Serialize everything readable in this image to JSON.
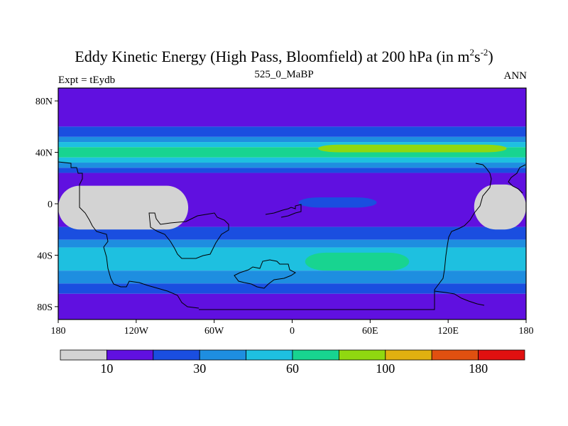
{
  "title_main": "Eddy Kinetic Energy (High Pass, Bloomfield) at 200 hPa (in m",
  "title_sup1": "2",
  "title_mid": "s",
  "title_sup2": "-2",
  "title_end": ")",
  "subtitle": "525_0_MaBP",
  "left_label": "Expt = tEydb",
  "right_label": "ANN",
  "chart_data": {
    "type": "heatmap",
    "title": "Eddy Kinetic Energy (High Pass, Bloomfield) at 200 hPa (in m^2 s^-2)",
    "subtitle": "525_0_MaBP",
    "xlim": [
      -180,
      180
    ],
    "ylim": [
      -90,
      90
    ],
    "x_ticks": [
      -180,
      -120,
      -60,
      0,
      60,
      120,
      180
    ],
    "x_tick_labels": [
      "180",
      "120W",
      "60W",
      "0",
      "60E",
      "120E",
      "180"
    ],
    "y_ticks": [
      80,
      40,
      0,
      -40,
      -80
    ],
    "y_tick_labels": [
      "80N",
      "40N",
      "0",
      "40S",
      "80S"
    ],
    "colorbar": {
      "colors": [
        "#d3d3d3",
        "#6010e0",
        "#1a4ee0",
        "#1e8ee0",
        "#1ec0e0",
        "#18d490",
        "#90d810",
        "#e0b010",
        "#e05010",
        "#e01010"
      ],
      "labels": [
        "10",
        "30",
        "60",
        "100",
        "180"
      ]
    },
    "bands": [
      {
        "level": 1,
        "y": [
          60,
          90
        ]
      },
      {
        "level": 2,
        "y": [
          52,
          60
        ]
      },
      {
        "level": 3,
        "y": [
          48,
          52
        ]
      },
      {
        "level": 4,
        "y": [
          44,
          48
        ]
      },
      {
        "level": 5,
        "y": [
          36,
          44
        ]
      },
      {
        "level": 4,
        "y": [
          32,
          36
        ]
      },
      {
        "level": 3,
        "y": [
          28,
          32
        ]
      },
      {
        "level": 2,
        "y": [
          24,
          28
        ]
      },
      {
        "level": 1,
        "y": [
          -18,
          24
        ]
      },
      {
        "level": 2,
        "y": [
          -28,
          -18
        ]
      },
      {
        "level": 3,
        "y": [
          -34,
          -28
        ]
      },
      {
        "level": 4,
        "y": [
          -52,
          -34
        ]
      },
      {
        "level": 3,
        "y": [
          -62,
          -52
        ]
      },
      {
        "level": 2,
        "y": [
          -70,
          -62
        ]
      },
      {
        "level": 1,
        "y": [
          -90,
          -70
        ]
      }
    ],
    "patches": [
      {
        "level": 6,
        "lon": [
          20,
          165
        ],
        "lat": [
          40,
          46
        ]
      },
      {
        "level": 5,
        "lon": [
          10,
          90
        ],
        "lat": [
          -52,
          -38
        ]
      },
      {
        "level": 2,
        "lon": [
          5,
          65
        ],
        "lat": [
          -3,
          5
        ]
      },
      {
        "level": 0,
        "lon": [
          -180,
          -80
        ],
        "lat": [
          -20,
          14
        ]
      },
      {
        "level": 0,
        "lon": [
          140,
          180
        ],
        "lat": [
          -20,
          15
        ]
      }
    ]
  }
}
